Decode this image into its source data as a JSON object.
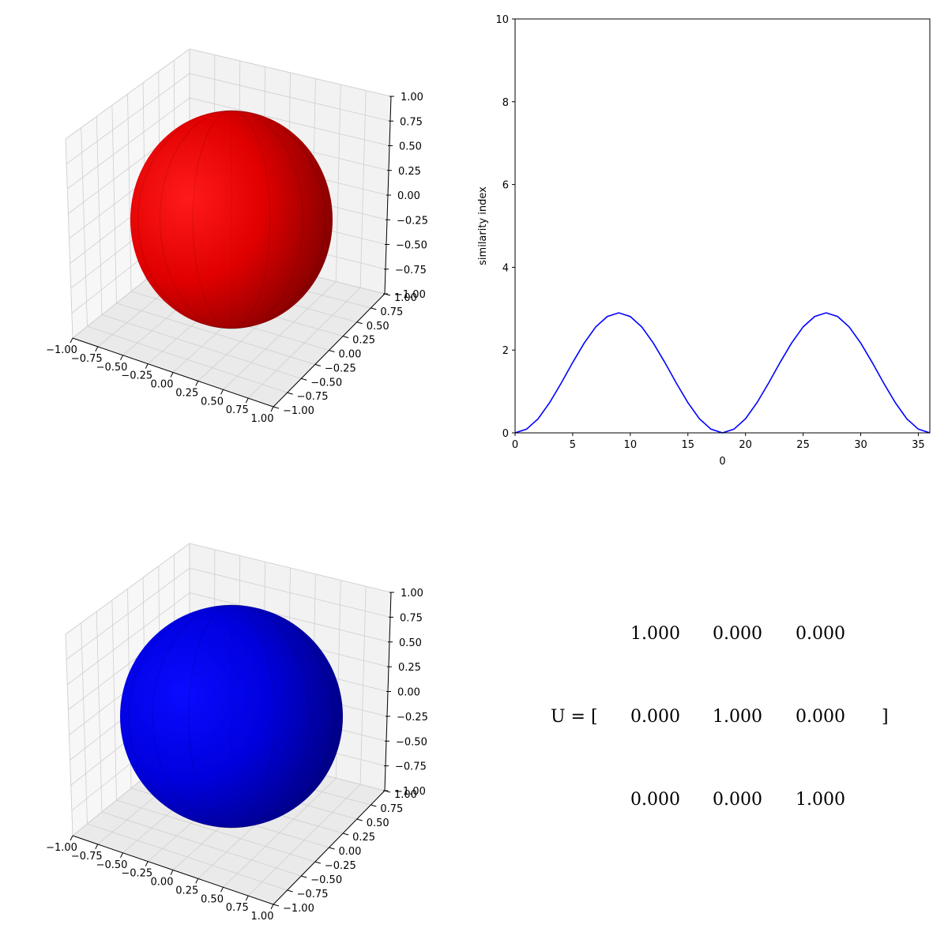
{
  "chart_data": [
    {
      "type": "3d-surface",
      "shape": "sphere",
      "color": "#ff0000",
      "xlim": [
        -1,
        1
      ],
      "ylim": [
        -1,
        1
      ],
      "zlim": [
        -1,
        1
      ],
      "x_ticks": [
        "−1.00",
        "−0.75",
        "−0.50",
        "−0.25",
        "0.00",
        "0.25",
        "0.50",
        "0.75",
        "1.00"
      ],
      "y_ticks": [
        "−1.00",
        "−0.75",
        "−0.50",
        "−0.25",
        "0.00",
        "0.25",
        "0.50",
        "0.75",
        "1.00"
      ],
      "z_ticks": [
        "−1.00",
        "−0.75",
        "−0.50",
        "−0.25",
        "0.00",
        "0.25",
        "0.50",
        "0.75",
        "1.00"
      ],
      "grid": true
    },
    {
      "type": "line",
      "xlabel": "0",
      "ylabel": "similarity index",
      "xlim": [
        0,
        36
      ],
      "ylim": [
        0,
        10
      ],
      "x_ticks": [
        0,
        5,
        10,
        15,
        20,
        25,
        30,
        35
      ],
      "y_ticks": [
        0,
        2,
        4,
        6,
        8,
        10
      ],
      "grid": false,
      "series": [
        {
          "color": "#0000ff",
          "x": [
            0,
            1,
            2,
            3,
            4,
            5,
            6,
            7,
            8,
            9,
            10,
            11,
            12,
            13,
            14,
            15,
            16,
            17,
            18,
            19,
            20,
            21,
            22,
            23,
            24,
            25,
            26,
            27,
            28,
            29,
            30,
            31,
            32,
            33,
            34,
            35,
            36
          ],
          "y": [
            0.0,
            0.09,
            0.34,
            0.73,
            1.2,
            1.7,
            2.17,
            2.56,
            2.81,
            2.9,
            2.81,
            2.56,
            2.17,
            1.7,
            1.2,
            0.73,
            0.34,
            0.09,
            0.0,
            0.09,
            0.34,
            0.73,
            1.2,
            1.7,
            2.17,
            2.56,
            2.81,
            2.9,
            2.81,
            2.56,
            2.17,
            1.7,
            1.2,
            0.73,
            0.34,
            0.09,
            0.0
          ]
        }
      ]
    },
    {
      "type": "3d-surface",
      "shape": "sphere",
      "color": "#0000ff",
      "xlim": [
        -1,
        1
      ],
      "ylim": [
        -1,
        1
      ],
      "zlim": [
        -1,
        1
      ],
      "x_ticks": [
        "−1.00",
        "−0.75",
        "−0.50",
        "−0.25",
        "0.00",
        "0.25",
        "0.50",
        "0.75",
        "1.00"
      ],
      "y_ticks": [
        "−1.00",
        "−0.75",
        "−0.50",
        "−0.25",
        "0.00",
        "0.25",
        "0.50",
        "0.75",
        "1.00"
      ],
      "z_ticks": [
        "−1.00",
        "−0.75",
        "−0.50",
        "−0.25",
        "0.00",
        "0.25",
        "0.50",
        "0.75",
        "1.00"
      ],
      "grid": true
    }
  ],
  "matrix": {
    "prefix": "U = [",
    "suffix": "]",
    "rows": [
      [
        "1.000",
        "0.000",
        "0.000"
      ],
      [
        "0.000",
        "1.000",
        "0.000"
      ],
      [
        "0.000",
        "0.000",
        "1.000"
      ]
    ]
  }
}
